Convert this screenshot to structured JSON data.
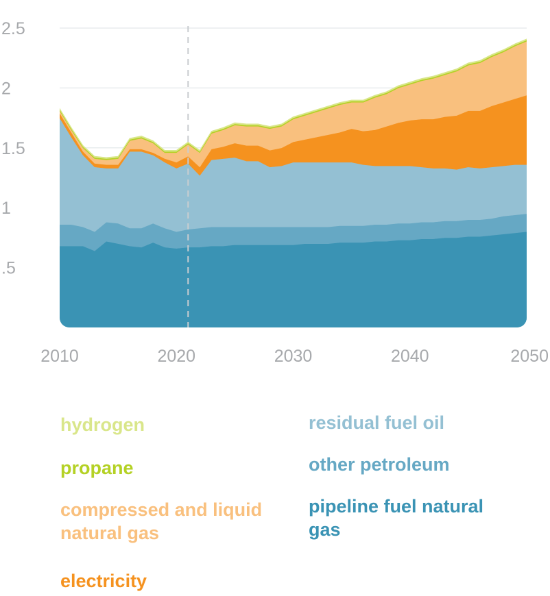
{
  "chart_data": {
    "type": "area",
    "stacked": true,
    "title": "",
    "xlabel": "",
    "ylabel": "",
    "xlim": [
      2010,
      2050
    ],
    "ylim": [
      0,
      2.5
    ],
    "x_ticks": [
      2010,
      2020,
      2030,
      2040,
      2050
    ],
    "x_tick_labels": [
      "2010",
      "2020",
      "2030",
      "2040",
      "2050"
    ],
    "y_ticks": [
      0.5,
      1,
      1.5,
      2,
      2.5
    ],
    "y_tick_labels": [
      ".5",
      "1",
      "1.5",
      "2",
      "2.5"
    ],
    "grid": "horizontal",
    "marker_line": {
      "x": 2021,
      "style": "dashed"
    },
    "legend_placement": "below",
    "x": [
      2010,
      2011,
      2012,
      2013,
      2014,
      2015,
      2016,
      2017,
      2018,
      2019,
      2020,
      2021,
      2022,
      2023,
      2024,
      2025,
      2026,
      2027,
      2028,
      2029,
      2030,
      2031,
      2032,
      2033,
      2034,
      2035,
      2036,
      2037,
      2038,
      2039,
      2040,
      2041,
      2042,
      2043,
      2044,
      2045,
      2046,
      2047,
      2048,
      2049,
      2050
    ],
    "series": [
      {
        "name": "pipeline fuel natural gas",
        "color": "#3a93b4",
        "values": [
          0.68,
          0.68,
          0.68,
          0.64,
          0.72,
          0.7,
          0.68,
          0.67,
          0.71,
          0.67,
          0.66,
          0.67,
          0.67,
          0.68,
          0.68,
          0.69,
          0.69,
          0.69,
          0.69,
          0.69,
          0.69,
          0.7,
          0.7,
          0.7,
          0.71,
          0.71,
          0.71,
          0.72,
          0.72,
          0.73,
          0.73,
          0.74,
          0.74,
          0.75,
          0.75,
          0.76,
          0.76,
          0.77,
          0.78,
          0.79,
          0.8
        ]
      },
      {
        "name": "other petroleum",
        "color": "#66a8c4",
        "values": [
          0.18,
          0.18,
          0.16,
          0.16,
          0.16,
          0.17,
          0.15,
          0.16,
          0.16,
          0.16,
          0.14,
          0.15,
          0.16,
          0.16,
          0.16,
          0.15,
          0.15,
          0.15,
          0.15,
          0.15,
          0.15,
          0.14,
          0.14,
          0.14,
          0.14,
          0.14,
          0.14,
          0.14,
          0.14,
          0.14,
          0.14,
          0.14,
          0.14,
          0.14,
          0.14,
          0.14,
          0.14,
          0.14,
          0.15,
          0.15,
          0.15
        ]
      },
      {
        "name": "residual fuel oil",
        "color": "#94c0d3",
        "values": [
          0.89,
          0.73,
          0.6,
          0.54,
          0.45,
          0.46,
          0.64,
          0.64,
          0.57,
          0.55,
          0.53,
          0.55,
          0.44,
          0.56,
          0.57,
          0.58,
          0.55,
          0.55,
          0.5,
          0.51,
          0.54,
          0.54,
          0.54,
          0.54,
          0.53,
          0.53,
          0.51,
          0.49,
          0.49,
          0.48,
          0.48,
          0.46,
          0.45,
          0.44,
          0.43,
          0.44,
          0.43,
          0.43,
          0.42,
          0.42,
          0.41
        ]
      },
      {
        "name": "electricity",
        "color": "#f5921f",
        "values": [
          0.04,
          0.04,
          0.03,
          0.03,
          0.03,
          0.03,
          0.02,
          0.02,
          0.02,
          0.03,
          0.05,
          0.06,
          0.07,
          0.09,
          0.1,
          0.12,
          0.13,
          0.13,
          0.14,
          0.15,
          0.17,
          0.19,
          0.21,
          0.23,
          0.25,
          0.28,
          0.28,
          0.3,
          0.33,
          0.36,
          0.38,
          0.4,
          0.41,
          0.43,
          0.45,
          0.47,
          0.48,
          0.51,
          0.53,
          0.55,
          0.58
        ]
      },
      {
        "name": "compressed and liquid natural gas",
        "color": "#f9c07e",
        "values": [
          0.02,
          0.02,
          0.03,
          0.04,
          0.04,
          0.05,
          0.07,
          0.09,
          0.08,
          0.05,
          0.08,
          0.1,
          0.12,
          0.13,
          0.14,
          0.15,
          0.16,
          0.16,
          0.18,
          0.18,
          0.19,
          0.2,
          0.21,
          0.22,
          0.23,
          0.22,
          0.24,
          0.27,
          0.27,
          0.29,
          0.3,
          0.32,
          0.34,
          0.35,
          0.37,
          0.38,
          0.4,
          0.41,
          0.42,
          0.44,
          0.45
        ]
      },
      {
        "name": "propane",
        "color": "#b4d125",
        "values": [
          0.01,
          0.01,
          0.01,
          0.01,
          0.01,
          0.01,
          0.01,
          0.01,
          0.01,
          0.01,
          0.01,
          0.01,
          0.01,
          0.01,
          0.01,
          0.01,
          0.01,
          0.01,
          0.01,
          0.01,
          0.01,
          0.01,
          0.01,
          0.01,
          0.01,
          0.01,
          0.01,
          0.01,
          0.01,
          0.01,
          0.01,
          0.01,
          0.01,
          0.01,
          0.01,
          0.01,
          0.01,
          0.01,
          0.01,
          0.01,
          0.01
        ]
      },
      {
        "name": "hydrogen",
        "color": "#d9e68a",
        "values": [
          0.01,
          0.01,
          0.01,
          0.01,
          0.01,
          0.01,
          0.01,
          0.01,
          0.01,
          0.01,
          0.01,
          0.01,
          0.01,
          0.01,
          0.01,
          0.01,
          0.01,
          0.01,
          0.01,
          0.01,
          0.01,
          0.01,
          0.01,
          0.01,
          0.01,
          0.01,
          0.01,
          0.01,
          0.01,
          0.01,
          0.01,
          0.01,
          0.01,
          0.01,
          0.01,
          0.01,
          0.01,
          0.01,
          0.01,
          0.01,
          0.01
        ]
      }
    ]
  },
  "legend": [
    {
      "label": "hydrogen",
      "color": "#d9e68a"
    },
    {
      "label": "propane",
      "color": "#b4d125"
    },
    {
      "label": "compressed and liquid natural gas",
      "color": "#f9c07e"
    },
    {
      "label": "electricity",
      "color": "#f5921f"
    },
    {
      "label": "residual fuel oil",
      "color": "#94c0d3"
    },
    {
      "label": "other petroleum",
      "color": "#66a8c4"
    },
    {
      "label": "pipeline fuel natural gas",
      "color": "#3a93b4"
    }
  ]
}
